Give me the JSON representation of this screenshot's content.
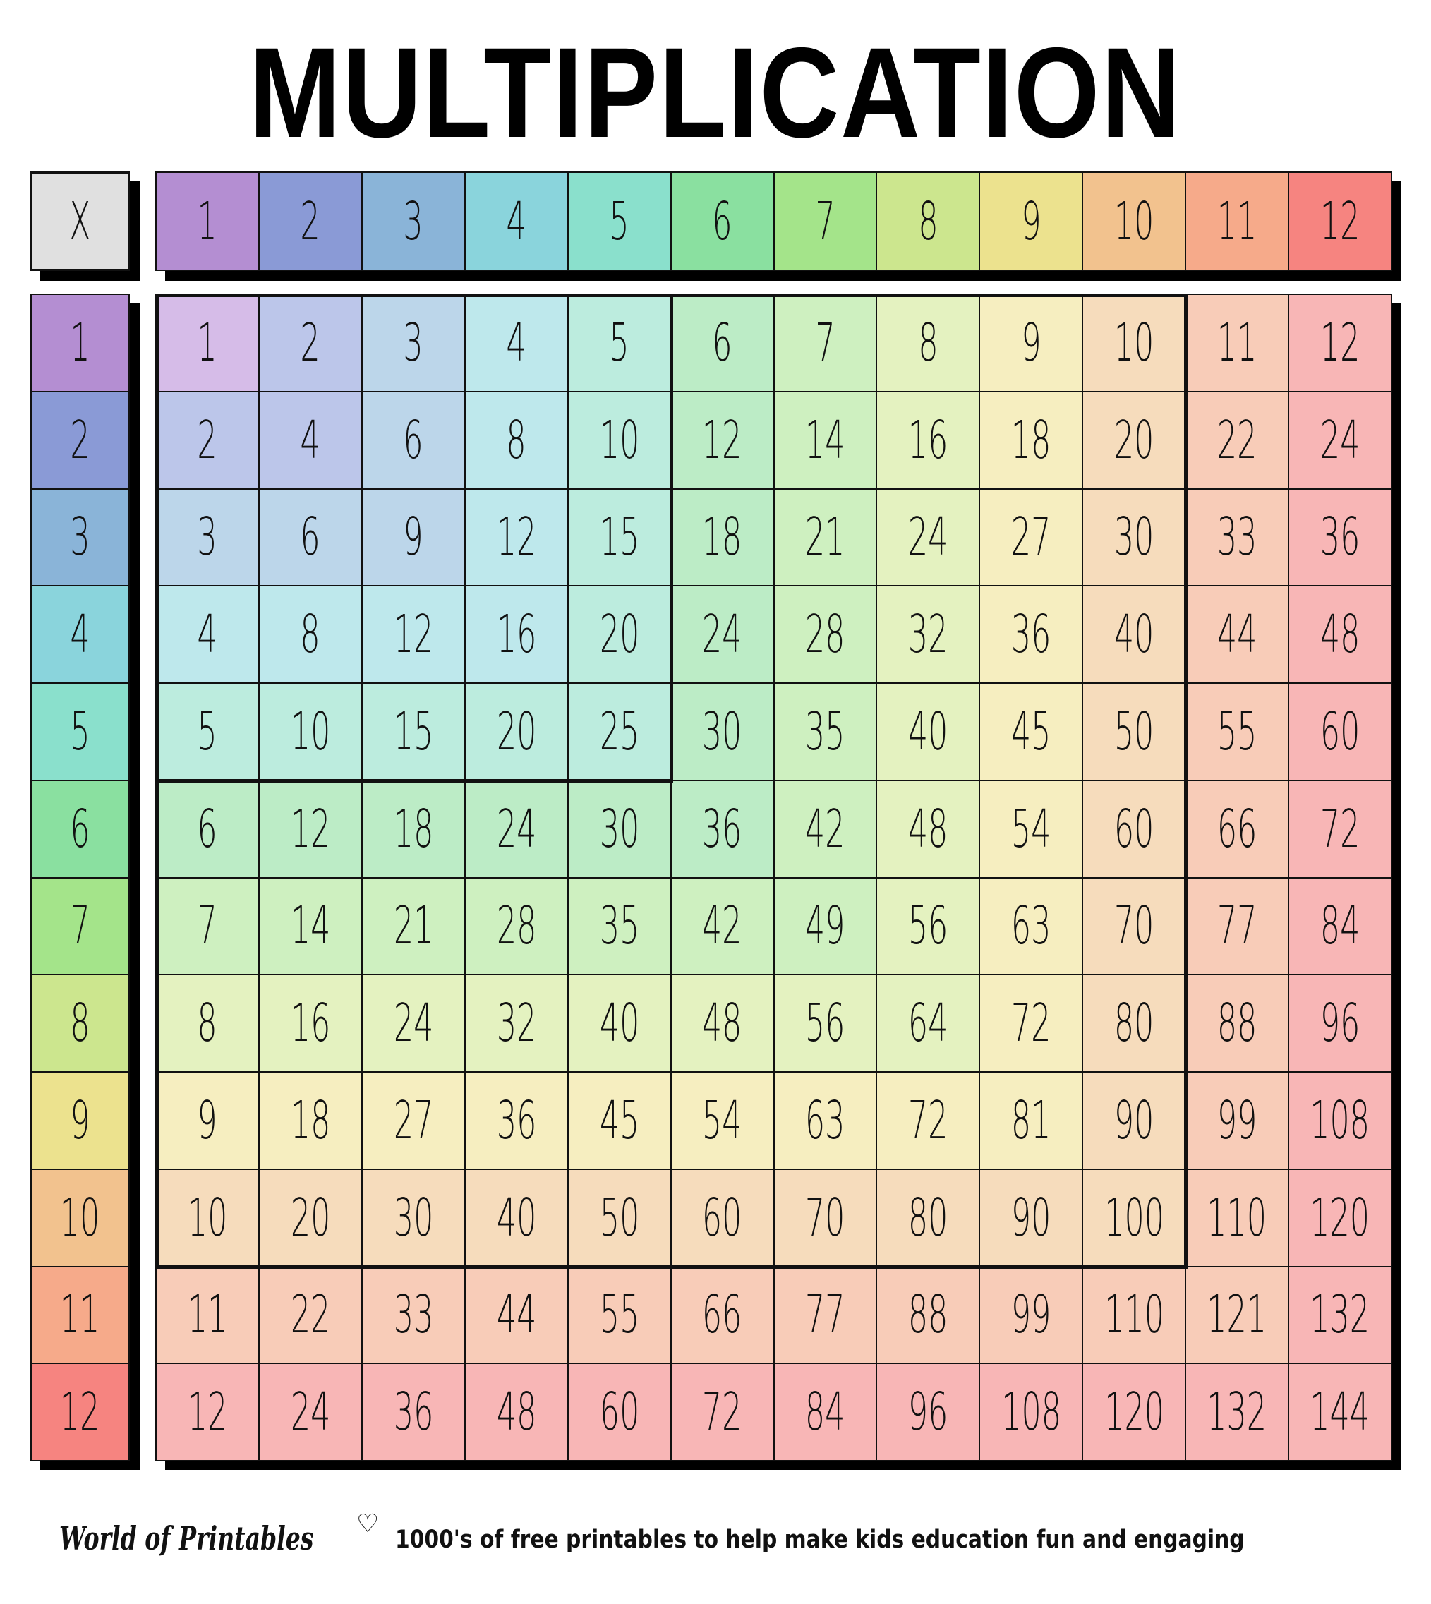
{
  "title": "MULTIPLICATION",
  "corner_label": "X",
  "header": [
    "1",
    "2",
    "3",
    "4",
    "5",
    "6",
    "7",
    "8",
    "9",
    "10",
    "11",
    "12"
  ],
  "row_labels": [
    "1",
    "2",
    "3",
    "4",
    "5",
    "6",
    "7",
    "8",
    "9",
    "10",
    "11",
    "12"
  ],
  "table": [
    [
      "1",
      "2",
      "3",
      "4",
      "5",
      "6",
      "7",
      "8",
      "9",
      "10",
      "11",
      "12"
    ],
    [
      "2",
      "4",
      "6",
      "8",
      "10",
      "12",
      "14",
      "16",
      "18",
      "20",
      "22",
      "24"
    ],
    [
      "3",
      "6",
      "9",
      "12",
      "15",
      "18",
      "21",
      "24",
      "27",
      "30",
      "33",
      "36"
    ],
    [
      "4",
      "8",
      "12",
      "16",
      "20",
      "24",
      "28",
      "32",
      "36",
      "40",
      "44",
      "48"
    ],
    [
      "5",
      "10",
      "15",
      "20",
      "25",
      "30",
      "35",
      "40",
      "45",
      "50",
      "55",
      "60"
    ],
    [
      "6",
      "12",
      "18",
      "24",
      "30",
      "36",
      "42",
      "48",
      "54",
      "60",
      "66",
      "72"
    ],
    [
      "7",
      "14",
      "21",
      "28",
      "35",
      "42",
      "49",
      "56",
      "63",
      "70",
      "77",
      "84"
    ],
    [
      "8",
      "16",
      "24",
      "32",
      "40",
      "48",
      "56",
      "64",
      "72",
      "80",
      "88",
      "96"
    ],
    [
      "9",
      "18",
      "27",
      "36",
      "45",
      "54",
      "63",
      "72",
      "81",
      "90",
      "99",
      "108"
    ],
    [
      "10",
      "20",
      "30",
      "40",
      "50",
      "60",
      "70",
      "80",
      "90",
      "100",
      "110",
      "120"
    ],
    [
      "11",
      "22",
      "33",
      "44",
      "55",
      "66",
      "77",
      "88",
      "99",
      "110",
      "121",
      "132"
    ],
    [
      "12",
      "24",
      "36",
      "48",
      "60",
      "72",
      "84",
      "96",
      "108",
      "120",
      "132",
      "144"
    ]
  ],
  "colors": {
    "corner": "#e0e0e0",
    "header": [
      "#b48ed2",
      "#8a9ad6",
      "#8ab4d8",
      "#8ad4dc",
      "#8ae0cc",
      "#8ae0a0",
      "#a4e48a",
      "#cce68e",
      "#ece28e",
      "#f2c28e",
      "#f6aa8a",
      "#f68480"
    ],
    "cell": [
      "#d6bce8",
      "#bcc6ea",
      "#bcd6ea",
      "#bee8ec",
      "#bcecde",
      "#bcecc6",
      "#cef0c0",
      "#e4f2c0",
      "#f6eec0",
      "#f6dcbc",
      "#f8ccb8",
      "#f8b6b6"
    ]
  },
  "footer": {
    "logo": "World of Printables",
    "heart_icon": "heart-outline-icon",
    "tagline": "1000's of free printables to help make kids education fun and engaging"
  }
}
